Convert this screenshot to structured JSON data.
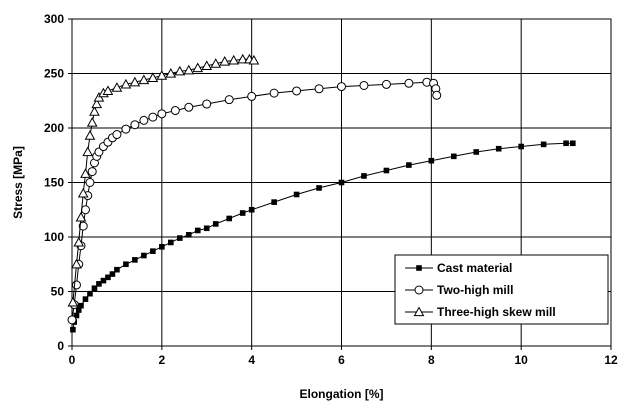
{
  "chart_data": {
    "type": "line",
    "xlabel": "Elongation [%]",
    "ylabel": "Stress [MPa]",
    "xlim": [
      0,
      12
    ],
    "ylim": [
      0,
      300
    ],
    "xticks": [
      0,
      2,
      4,
      6,
      8,
      10,
      12
    ],
    "yticks": [
      0,
      50,
      100,
      150,
      200,
      250,
      300
    ],
    "grid": true,
    "legend_position": "bottom-right",
    "series": [
      {
        "name": "Cast material",
        "marker": "filled-square",
        "color": "#000000",
        "x": [
          0.02,
          0.05,
          0.1,
          0.15,
          0.2,
          0.3,
          0.4,
          0.5,
          0.6,
          0.7,
          0.8,
          0.9,
          1.0,
          1.2,
          1.4,
          1.6,
          1.8,
          2.0,
          2.2,
          2.4,
          2.6,
          2.8,
          3.0,
          3.2,
          3.5,
          3.8,
          4.0,
          4.5,
          5.0,
          5.5,
          6.0,
          6.5,
          7.0,
          7.5,
          8.0,
          8.5,
          9.0,
          9.5,
          10.0,
          10.5,
          11.0,
          11.15
        ],
        "values": [
          15,
          22,
          28,
          33,
          37,
          43,
          48,
          53,
          57,
          60,
          63,
          66,
          70,
          75,
          79,
          83,
          87,
          91,
          95,
          99,
          102,
          106,
          108,
          112,
          117,
          122,
          125,
          132,
          139,
          145,
          150,
          156,
          161,
          166,
          170,
          174,
          178,
          181,
          183,
          185,
          186,
          186
        ]
      },
      {
        "name": "Two-high mill",
        "marker": "open-circle",
        "color": "#000000",
        "x": [
          0.0,
          0.05,
          0.1,
          0.15,
          0.2,
          0.25,
          0.3,
          0.35,
          0.4,
          0.45,
          0.5,
          0.55,
          0.6,
          0.7,
          0.8,
          0.9,
          1.0,
          1.2,
          1.4,
          1.6,
          1.8,
          2.0,
          2.3,
          2.6,
          3.0,
          3.5,
          4.0,
          4.5,
          5.0,
          5.5,
          6.0,
          6.5,
          7.0,
          7.5,
          7.9,
          8.05,
          8.1,
          8.12
        ],
        "values": [
          24,
          38,
          56,
          75,
          92,
          110,
          125,
          138,
          150,
          160,
          168,
          174,
          178,
          183,
          187,
          191,
          194,
          199,
          203,
          207,
          210,
          213,
          216,
          219,
          222,
          226,
          229,
          232,
          234,
          236,
          238,
          239,
          240,
          241,
          242,
          241,
          236,
          230
        ]
      },
      {
        "name": "Three-high skew mill",
        "marker": "open-triangle",
        "color": "#000000",
        "x": [
          0.02,
          0.1,
          0.15,
          0.2,
          0.25,
          0.3,
          0.35,
          0.4,
          0.45,
          0.5,
          0.55,
          0.6,
          0.7,
          0.8,
          1.0,
          1.2,
          1.4,
          1.6,
          1.8,
          2.0,
          2.2,
          2.4,
          2.6,
          2.8,
          3.0,
          3.2,
          3.4,
          3.6,
          3.8,
          3.95,
          4.05
        ],
        "values": [
          40,
          75,
          95,
          118,
          140,
          158,
          178,
          193,
          205,
          215,
          222,
          228,
          232,
          234,
          237,
          240,
          242,
          244,
          246,
          248,
          250,
          252,
          253,
          255,
          257,
          259,
          261,
          262,
          263,
          263,
          262
        ]
      }
    ]
  }
}
